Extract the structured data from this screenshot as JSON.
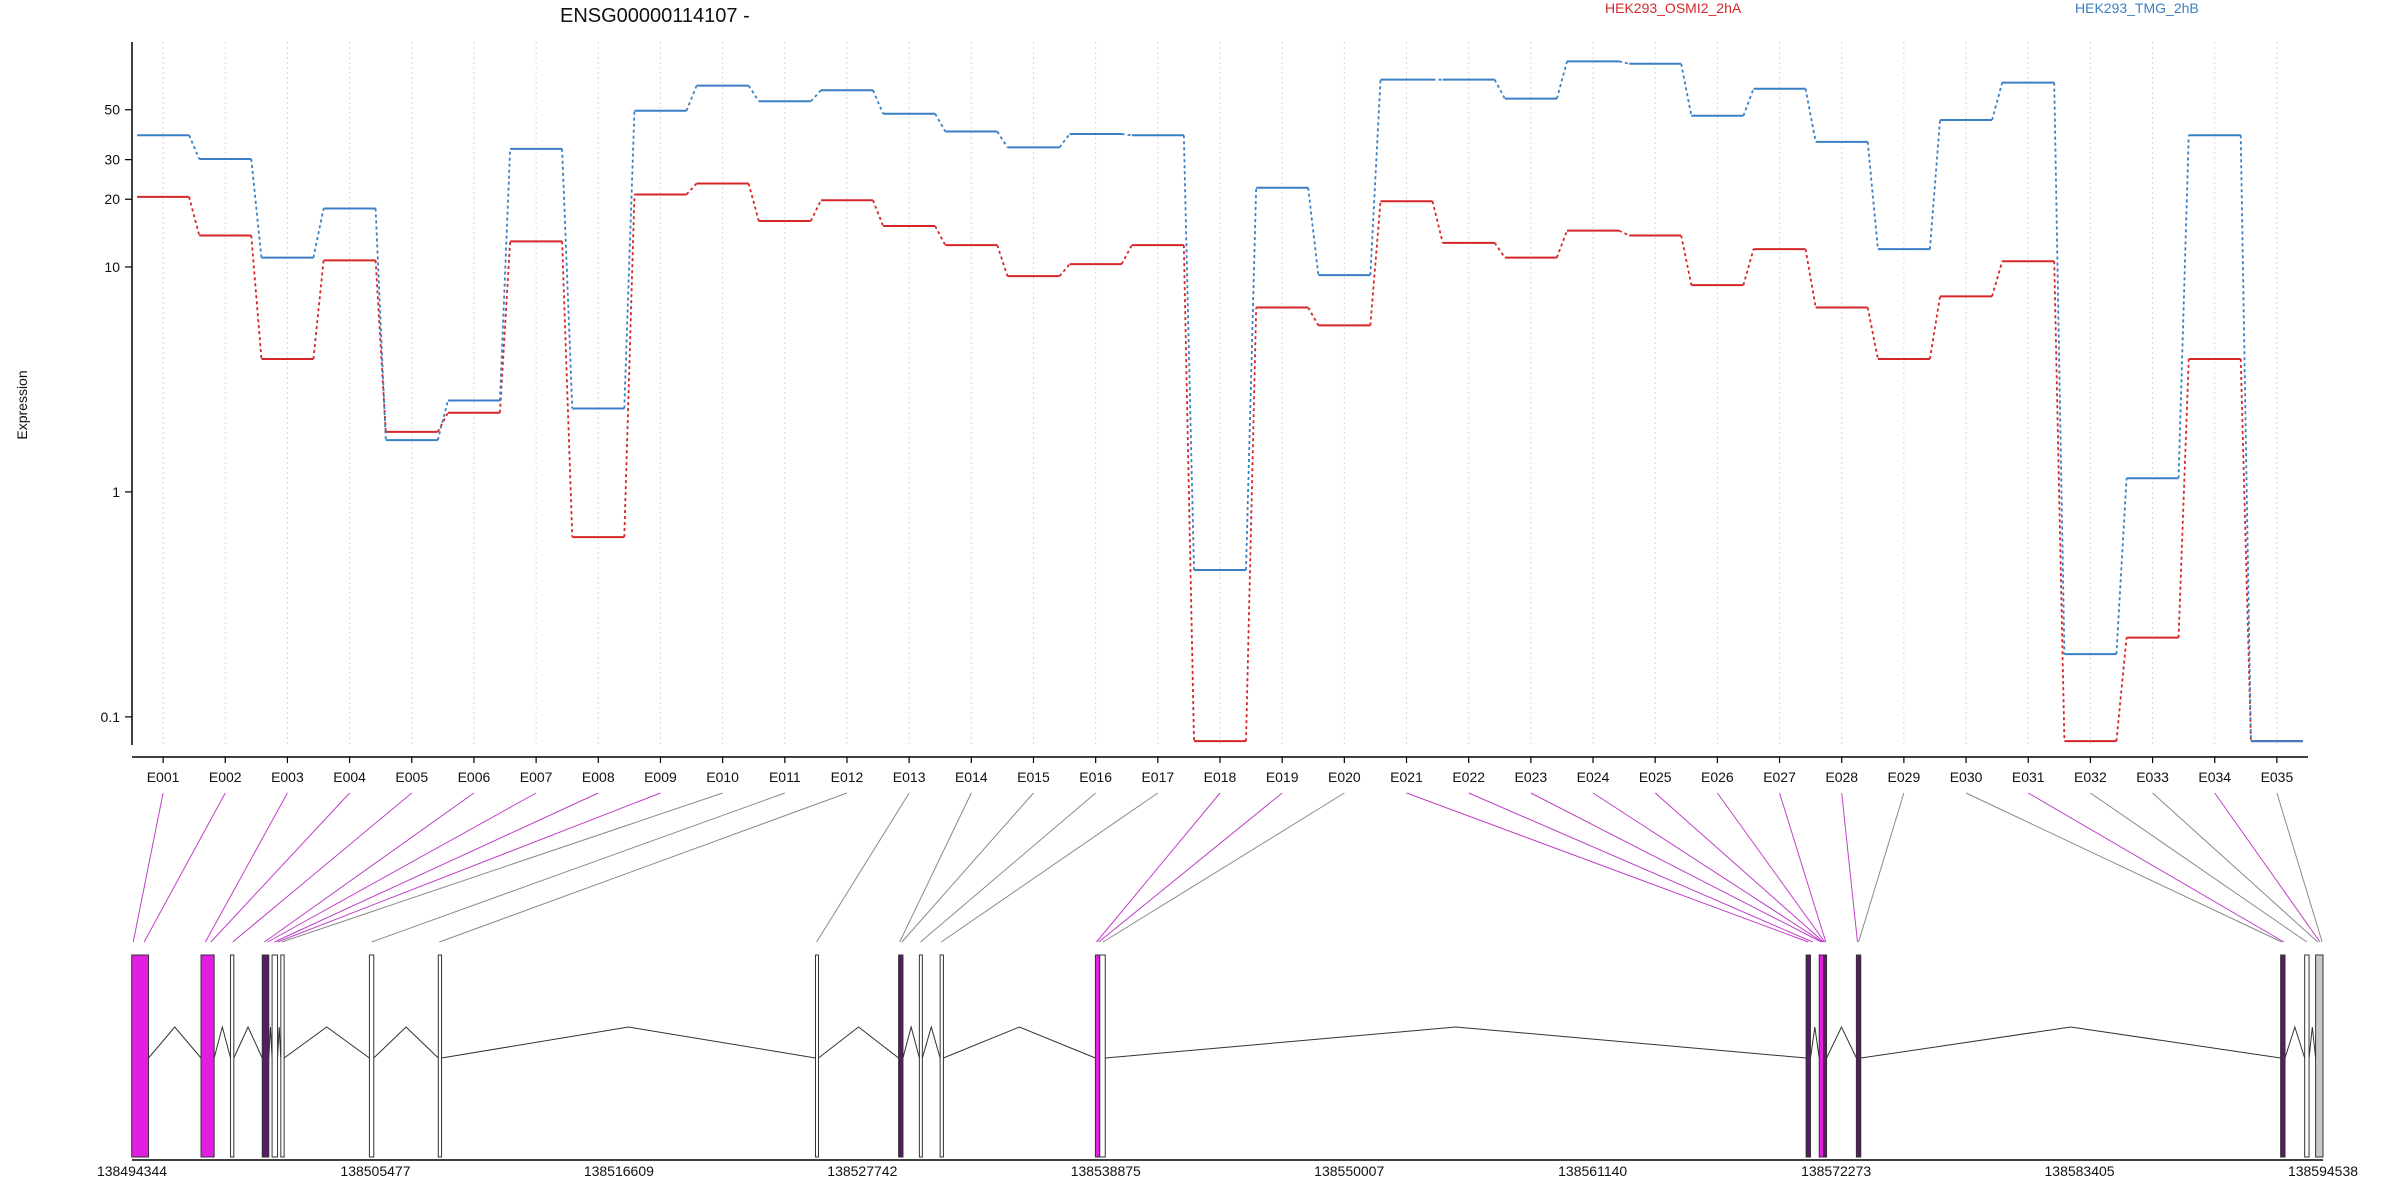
{
  "chart_data": {
    "type": "line",
    "title": "ENSG00000114107 -",
    "ylabel": "Expression",
    "xlabel": "",
    "y_scale": "log",
    "y_ticks": [
      0.1,
      1,
      10,
      20,
      30,
      50
    ],
    "ylim": [
      0.075,
      100
    ],
    "grid": "vertical dotted lines at exon positions",
    "legend_placement": "top-right",
    "categories": [
      "E001",
      "E002",
      "E003",
      "E004",
      "E005",
      "E006",
      "E007",
      "E008",
      "E009",
      "E010",
      "E011",
      "E012",
      "E013",
      "E014",
      "E015",
      "E016",
      "E017",
      "E018",
      "E019",
      "E020",
      "E021",
      "E022",
      "E023",
      "E024",
      "E025",
      "E026",
      "E027",
      "E028",
      "E029",
      "E030",
      "E031",
      "E032",
      "E033",
      "E034",
      "E035"
    ],
    "series": [
      {
        "name": "HEK293_OSMI2_2hA",
        "color": "#d62728",
        "values": [
          20.5,
          13.8,
          3.9,
          10.7,
          1.85,
          2.25,
          13,
          0.63,
          21,
          23.5,
          16,
          19.8,
          15.2,
          12.5,
          9.1,
          10.3,
          12.5,
          0.078,
          6.6,
          5.5,
          19.6,
          12.8,
          11,
          14.5,
          13.8,
          8.3,
          12,
          6.6,
          3.9,
          7.4,
          10.6,
          0.078,
          0.225,
          3.9,
          0.078
        ]
      },
      {
        "name": "HEK293_TMG_2hB",
        "color": "#3a7fc4",
        "values": [
          38.5,
          30.2,
          11,
          18.2,
          1.7,
          2.55,
          33.5,
          2.35,
          49.5,
          64,
          54.5,
          61,
          48,
          40,
          34,
          39,
          38.5,
          0.45,
          22.5,
          9.2,
          68,
          68,
          56,
          82,
          80,
          47,
          62,
          36,
          12,
          45,
          66,
          0.19,
          1.15,
          38.5,
          0.078
        ]
      }
    ]
  },
  "gene_model": {
    "genomic_axis_labels": [
      "138494344",
      "138505477",
      "138516609",
      "138527742",
      "138538875",
      "138550007",
      "138561140",
      "138572273",
      "138583405",
      "138594538"
    ],
    "colors": {
      "highlighted_exon": "#e21fe0",
      "dark_exon": "#5a1a66",
      "exon_outline": "#333333",
      "noncoding_exon": "#c8c8c8",
      "connector_pink": "#c040c8",
      "connector_gray": "#8a8a8a"
    }
  }
}
